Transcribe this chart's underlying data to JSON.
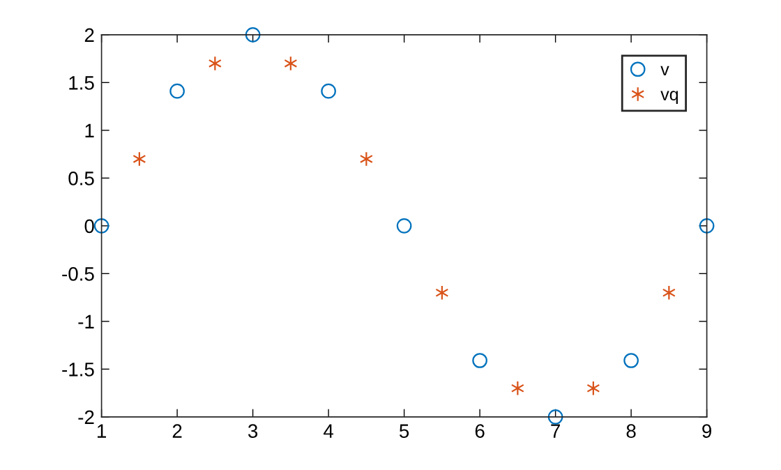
{
  "chart_data": {
    "type": "scatter",
    "xlim": [
      1,
      9
    ],
    "ylim": [
      -2,
      2
    ],
    "xticks": [
      1,
      2,
      3,
      4,
      5,
      6,
      7,
      8,
      9
    ],
    "yticks": [
      -2,
      -1.5,
      -1,
      -0.5,
      0,
      0.5,
      1,
      1.5,
      2
    ],
    "grid": false,
    "legend": "top right",
    "series": [
      {
        "name": "v",
        "color": "#0072bd",
        "marker": "circle",
        "x": [
          1,
          2,
          3,
          4,
          5,
          6,
          7,
          8,
          9
        ],
        "values": [
          0,
          1.41,
          2,
          1.41,
          0,
          -1.41,
          -2,
          -1.41,
          0
        ]
      },
      {
        "name": "vq",
        "color": "#d95319",
        "marker": "cross",
        "x": [
          1.5,
          2.5,
          3.5,
          4.5,
          5.5,
          6.5,
          7.5,
          8.5
        ],
        "values": [
          0.7,
          1.7,
          1.7,
          0.7,
          -0.7,
          -1.7,
          -1.7,
          -0.7
        ]
      }
    ]
  }
}
